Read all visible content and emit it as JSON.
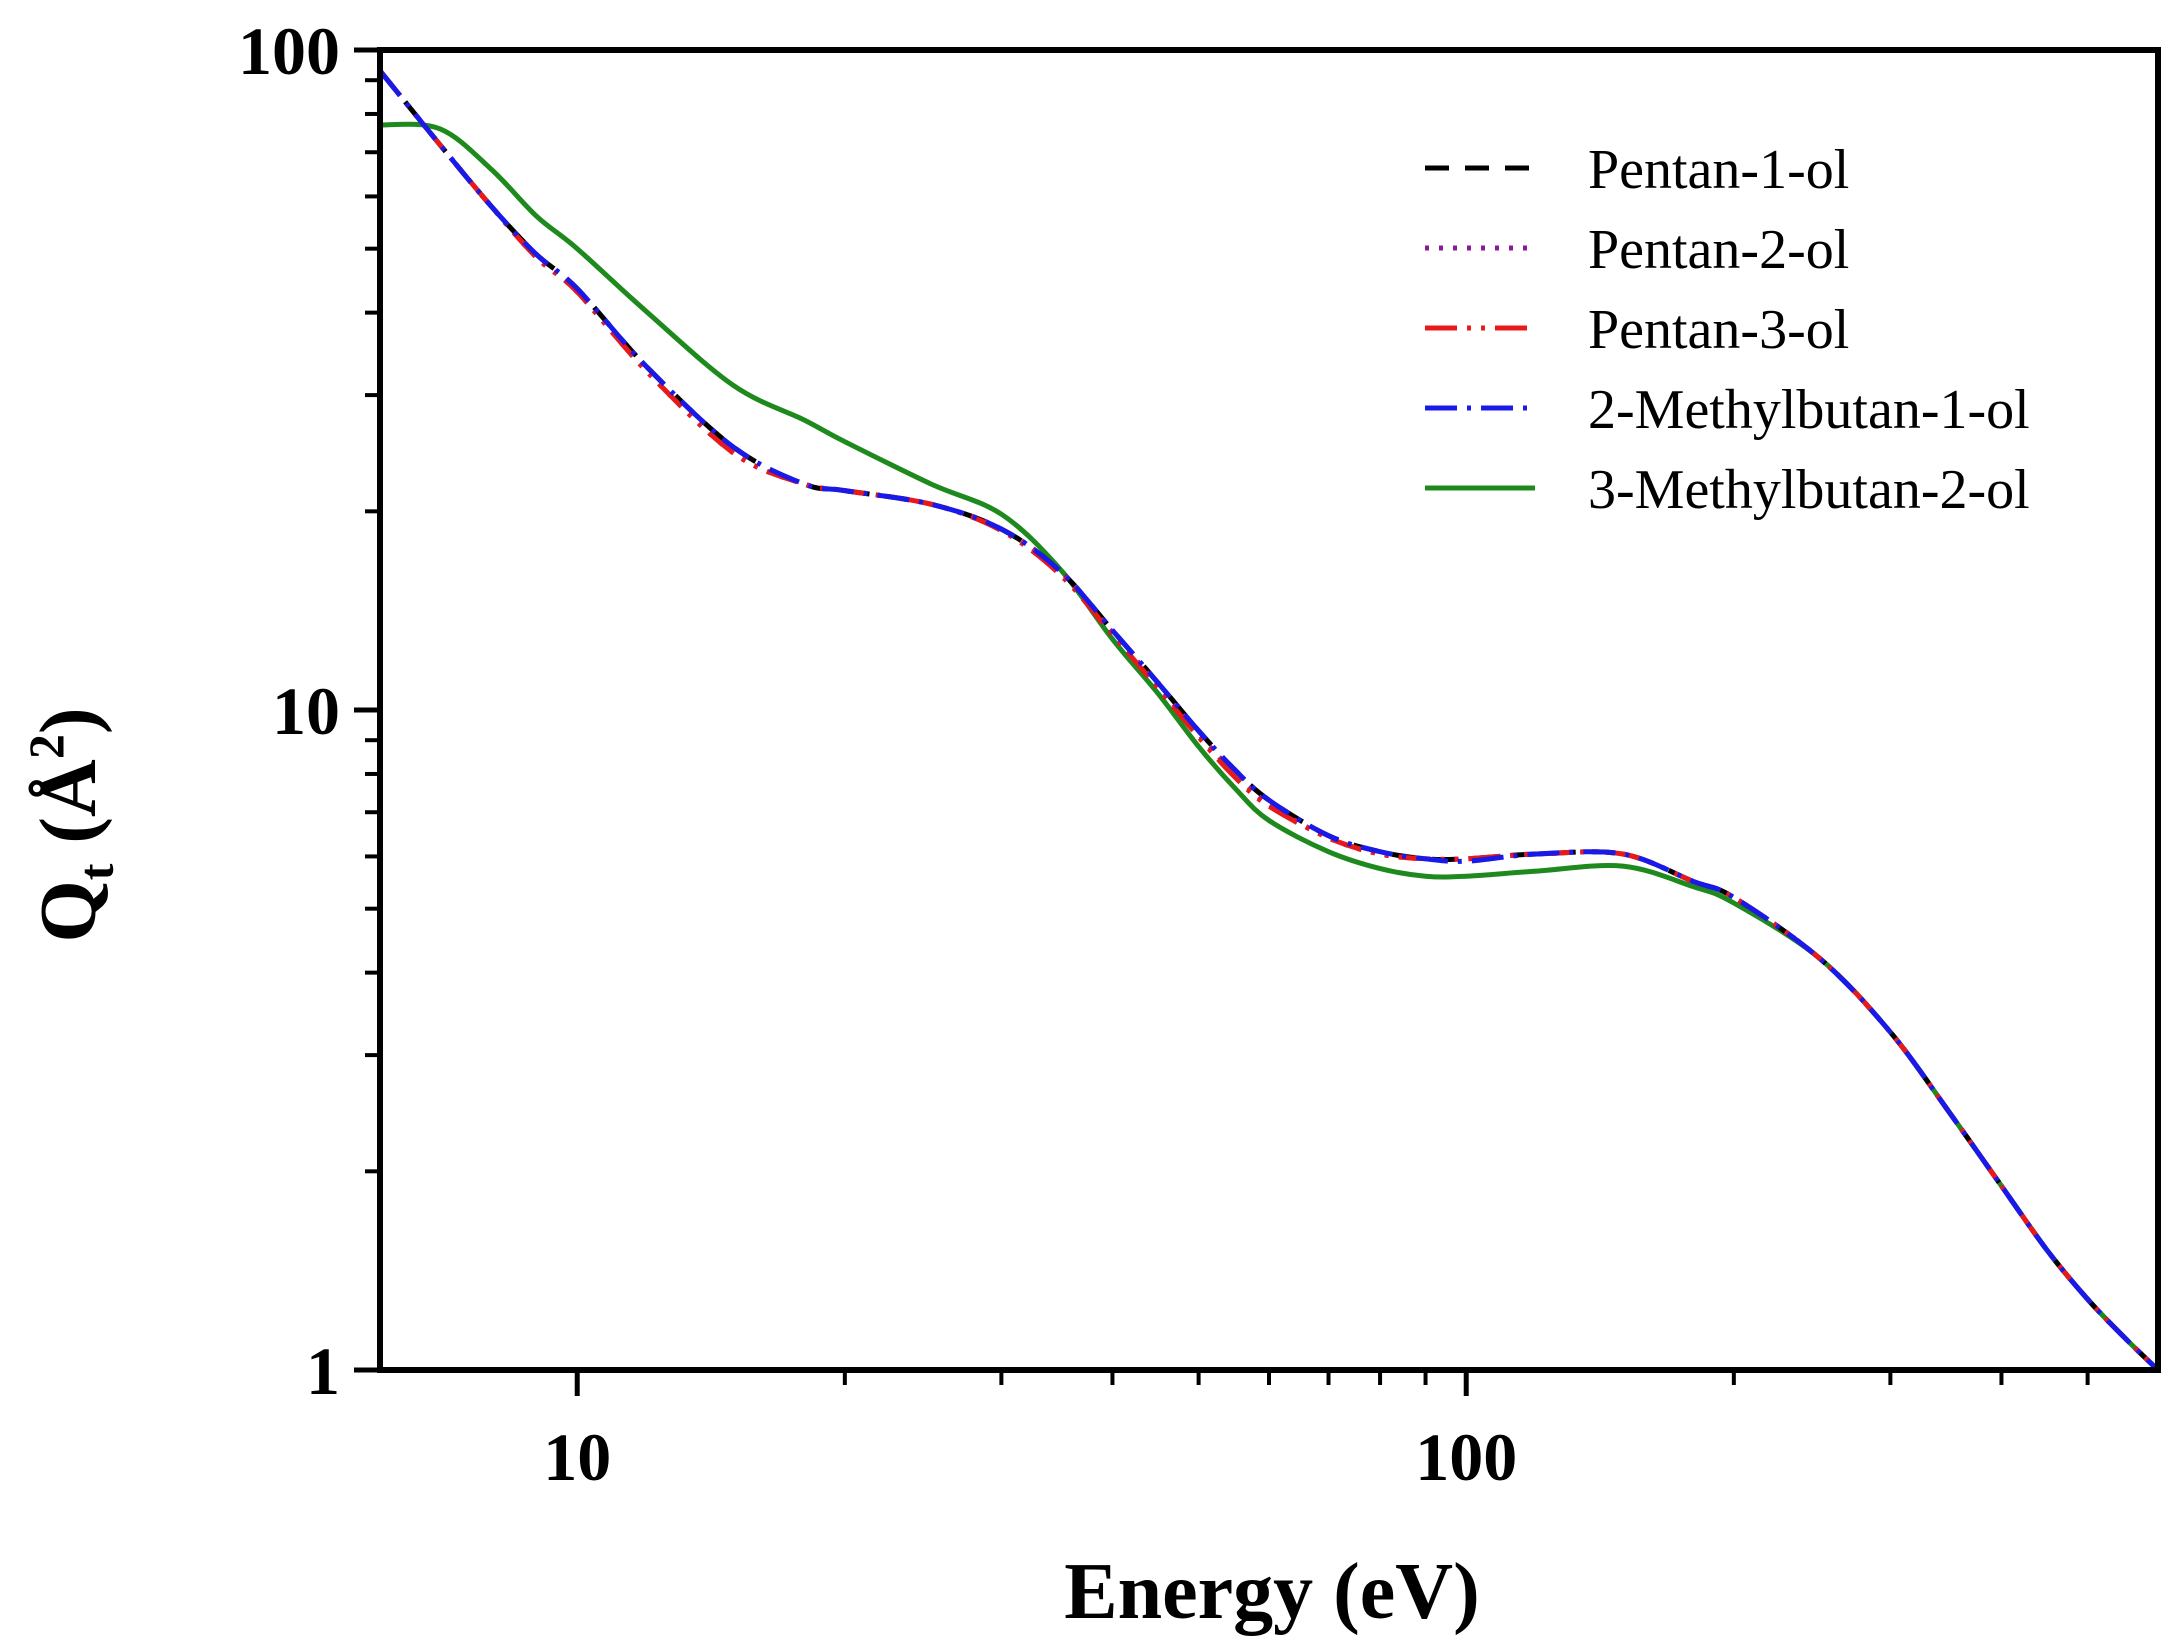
{
  "chart_data": {
    "type": "line",
    "title": "",
    "xlabel": "Energy (eV)",
    "ylabel_main": "Q",
    "ylabel_sub": "t",
    "ylabel_unit_open": " (Å",
    "ylabel_unit_sup": "2",
    "ylabel_unit_close": ")",
    "xscale": "log",
    "yscale": "log",
    "xlim": [
      6,
      600
    ],
    "ylim": [
      1,
      100
    ],
    "x_ticks": [
      {
        "value": 10,
        "label": "10"
      },
      {
        "value": 100,
        "label": "100"
      }
    ],
    "x_minor_ticks": [
      20,
      30,
      40,
      50,
      60,
      70,
      80,
      90,
      200,
      300,
      400,
      500
    ],
    "y_ticks": [
      {
        "value": 1,
        "label": "1"
      },
      {
        "value": 10,
        "label": "10"
      },
      {
        "value": 100,
        "label": "100"
      }
    ],
    "y_minor_ticks": [
      2,
      3,
      4,
      5,
      6,
      7,
      8,
      9,
      20,
      30,
      40,
      50,
      60,
      70,
      80,
      90
    ],
    "legend_position": "top-right",
    "x": [
      6,
      7,
      8,
      9,
      10,
      12,
      15,
      18,
      20,
      25,
      30,
      35,
      40,
      45,
      50,
      55,
      60,
      70,
      80,
      90,
      100,
      120,
      150,
      180,
      200,
      250,
      300,
      350,
      400,
      450,
      500,
      550,
      600
    ],
    "series": [
      {
        "name": "Pentan-1-ol",
        "color": "#000000",
        "dash": "24 16",
        "values": [
          93,
          72,
          58,
          49,
          43.5,
          33,
          25,
          22,
          21.5,
          20.5,
          18.8,
          16.2,
          13.2,
          11,
          9.3,
          8.1,
          7.3,
          6.45,
          6.1,
          5.95,
          5.95,
          6.05,
          6.05,
          5.5,
          5.2,
          4.2,
          3.25,
          2.45,
          1.9,
          1.52,
          1.28,
          1.12,
          1.0
        ]
      },
      {
        "name": "Pentan-2-ol",
        "color": "#8B1A9A",
        "dash": "4 10",
        "values": [
          93,
          72,
          58,
          48.5,
          43,
          32.5,
          24.5,
          22,
          21.5,
          20.5,
          18.8,
          16.2,
          13.1,
          10.9,
          9.2,
          8.0,
          7.2,
          6.4,
          6.05,
          5.95,
          5.95,
          6.05,
          6.05,
          5.5,
          5.2,
          4.2,
          3.25,
          2.45,
          1.9,
          1.52,
          1.28,
          1.12,
          1.0
        ]
      },
      {
        "name": "Pentan-3-ol",
        "color": "#E8191A",
        "dash": "32 10 4 10 4 10",
        "values": [
          93,
          72,
          58,
          48.5,
          43,
          32.5,
          24.5,
          22,
          21.5,
          20.5,
          18.7,
          16.0,
          13.0,
          10.8,
          9.1,
          7.9,
          7.15,
          6.4,
          6.05,
          5.95,
          5.95,
          6.05,
          6.05,
          5.5,
          5.2,
          4.2,
          3.25,
          2.45,
          1.9,
          1.52,
          1.28,
          1.12,
          1.0
        ]
      },
      {
        "name": "2-Methylbutan-1-ol",
        "color": "#1A1AE8",
        "dash": "32 10 4 10",
        "values": [
          93,
          72,
          58,
          49,
          43.5,
          33,
          25,
          22,
          21.5,
          20.5,
          18.8,
          16.2,
          13.2,
          11,
          9.3,
          8.1,
          7.3,
          6.45,
          6.1,
          5.95,
          5.9,
          6.05,
          6.05,
          5.5,
          5.2,
          4.2,
          3.25,
          2.45,
          1.9,
          1.52,
          1.28,
          1.12,
          1.0
        ]
      },
      {
        "name": "3-Methylbutan-2-ol",
        "color": "#1E8A1E",
        "dash": "",
        "values": [
          77,
          76,
          66,
          56,
          50,
          40,
          31,
          27.5,
          25.5,
          22,
          19.8,
          16.3,
          12.8,
          10.6,
          8.8,
          7.6,
          6.8,
          6.1,
          5.75,
          5.6,
          5.6,
          5.7,
          5.8,
          5.4,
          5.1,
          4.2,
          3.25,
          2.45,
          1.9,
          1.52,
          1.28,
          1.12,
          1.0
        ]
      }
    ]
  }
}
